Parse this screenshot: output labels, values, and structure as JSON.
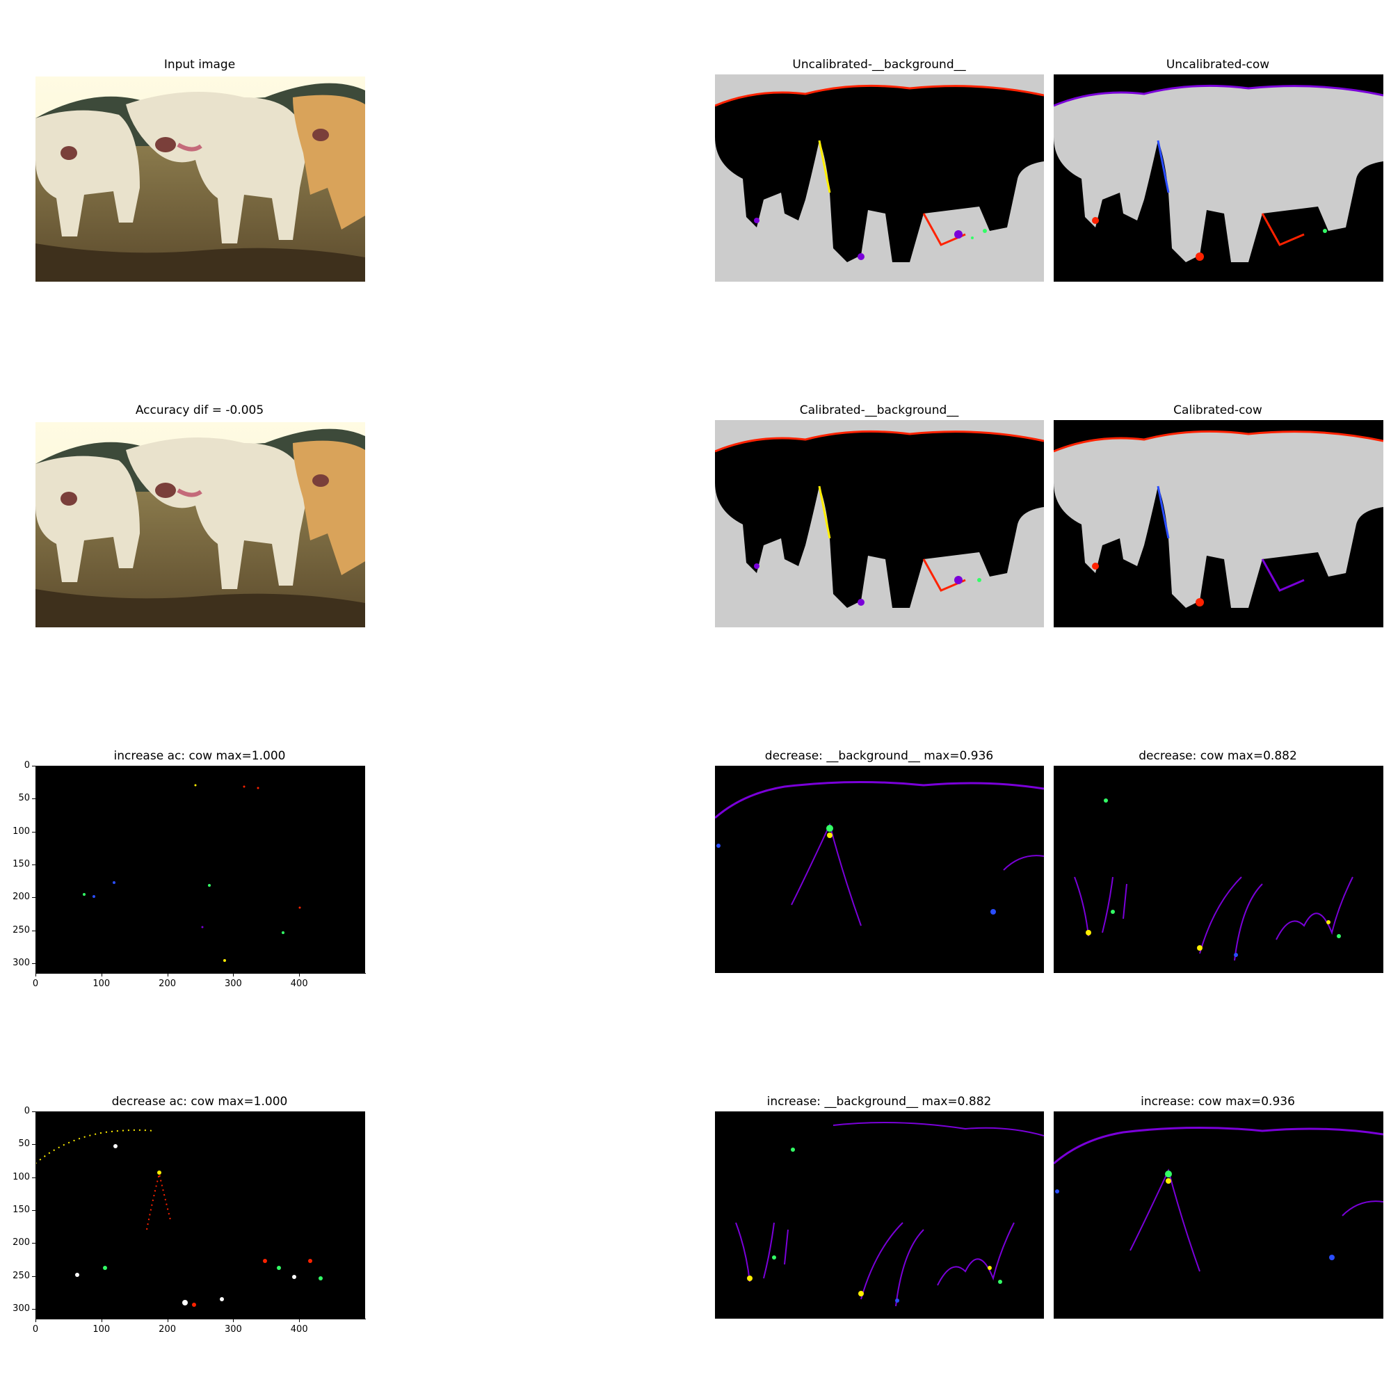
{
  "panels": {
    "input_image": {
      "title": "Input image"
    },
    "uncal_bg": {
      "title": "Uncalibrated-__background__"
    },
    "uncal_cow": {
      "title": "Uncalibrated-cow"
    },
    "accuracy": {
      "title": "Accuracy dif = -0.005"
    },
    "cal_bg": {
      "title": "Calibrated-__background__"
    },
    "cal_cow": {
      "title": "Calibrated-cow"
    },
    "inc_ac_cow": {
      "title": "increase ac: cow max=1.000"
    },
    "dec_bg": {
      "title": "decrease: __background__ max=0.936"
    },
    "dec_cow": {
      "title": "decrease: cow max=0.882"
    },
    "dec_ac_cow": {
      "title": "decrease ac: cow max=1.000"
    },
    "inc_bg": {
      "title": "increase: __background__ max=0.882"
    },
    "inc_cow": {
      "title": "increase: cow max=0.936"
    }
  },
  "axes": {
    "y_ticks": [
      "0",
      "50",
      "100",
      "150",
      "200",
      "250",
      "300"
    ],
    "x_ticks": [
      "0",
      "100",
      "200",
      "300",
      "400"
    ]
  },
  "colors": {
    "mask_light": "#cccccc",
    "mask_dark": "#000000",
    "edge_red": "#ff2200",
    "edge_purple": "#7a00d9",
    "edge_blue": "#2a4dff",
    "edge_green": "#33ff66",
    "edge_yellow": "#ffee00"
  }
}
